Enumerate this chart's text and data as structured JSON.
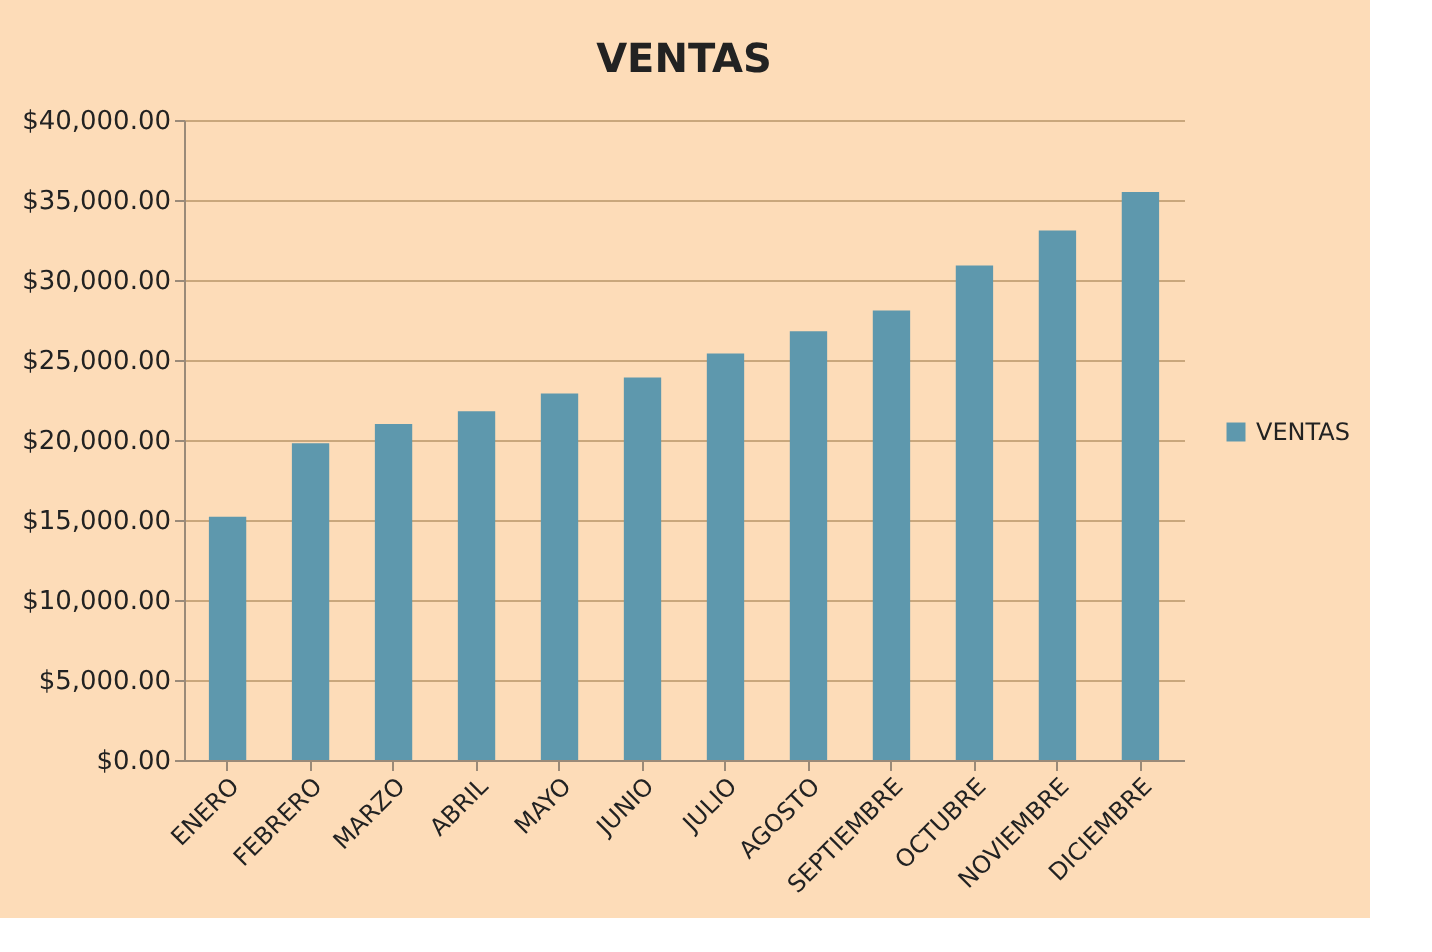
{
  "chart_data": {
    "type": "bar",
    "title": "VENTAS",
    "categories": [
      "ENERO",
      "FEBRERO",
      "MARZO",
      "ABRIL",
      "MAYO",
      "JUNIO",
      "JULIO",
      "AGOSTO",
      "SEPTIEMBRE",
      "OCTUBRE",
      "NOVIEMBRE",
      "DICIEMBRE"
    ],
    "series": [
      {
        "name": "VENTAS",
        "color": "#5e98ad",
        "values": [
          15200,
          19800,
          21000,
          21800,
          22900,
          23900,
          25400,
          26800,
          28100,
          30900,
          33100,
          35500
        ]
      }
    ],
    "ylim": [
      0,
      40000
    ],
    "yticks": [
      {
        "value": 0,
        "label": "$0.00"
      },
      {
        "value": 5000,
        "label": "$5,000.00"
      },
      {
        "value": 10000,
        "label": "$10,000.00"
      },
      {
        "value": 15000,
        "label": "$15,000.00"
      },
      {
        "value": 20000,
        "label": "$20,000.00"
      },
      {
        "value": 25000,
        "label": "$25,000.00"
      },
      {
        "value": 30000,
        "label": "$30,000.00"
      },
      {
        "value": 35000,
        "label": "$35,000.00"
      },
      {
        "value": 40000,
        "label": "$40,000.00"
      }
    ],
    "grid": "y",
    "legend": "right"
  }
}
